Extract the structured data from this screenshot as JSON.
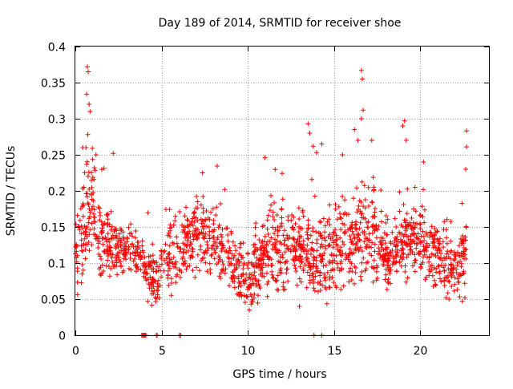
{
  "chart_data": {
    "type": "scatter",
    "title": "Day 189 of 2014, SRMTID for receiver shoe",
    "xlabel": "GPS time / hours",
    "ylabel": "SRMTID / TECUs",
    "xlim": [
      0,
      24
    ],
    "ylim": [
      0,
      0.4
    ],
    "grid": true,
    "marker": "+",
    "colors": {
      "points": "#ff0000",
      "grid": "#a0a0a0",
      "axis": "#000000"
    },
    "x_ticks": [
      {
        "value": 0,
        "label": "0"
      },
      {
        "value": 5,
        "label": "5"
      },
      {
        "value": 10,
        "label": "10"
      },
      {
        "value": 15,
        "label": "15"
      },
      {
        "value": 20,
        "label": "20"
      }
    ],
    "y_ticks": [
      {
        "value": 0,
        "label": "0"
      },
      {
        "value": 0.05,
        "label": "0.05"
      },
      {
        "value": 0.1,
        "label": "0.1"
      },
      {
        "value": 0.15,
        "label": "0.15"
      },
      {
        "value": 0.2,
        "label": "0.2"
      },
      {
        "value": 0.25,
        "label": "0.25"
      },
      {
        "value": 0.3,
        "label": "0.3"
      },
      {
        "value": 0.35,
        "label": "0.35"
      },
      {
        "value": 0.4,
        "label": "0.4"
      }
    ],
    "trend": {
      "name": "SRMTID",
      "x": [
        0.0,
        0.5,
        0.7,
        1.0,
        1.3,
        1.8,
        2.3,
        3.0,
        3.7,
        4.2,
        4.6,
        5.2,
        6.0,
        6.5,
        7.5,
        8.5,
        9.3,
        10.0,
        10.6,
        11.2,
        12.0,
        13.0,
        13.6,
        14.3,
        15.0,
        15.6,
        16.2,
        17.0,
        17.5,
        18.2,
        19.0,
        19.6,
        20.5,
        21.3,
        22.0,
        22.7
      ],
      "y": [
        0.11,
        0.15,
        0.17,
        0.18,
        0.14,
        0.13,
        0.12,
        0.115,
        0.115,
        0.09,
        0.08,
        0.1,
        0.11,
        0.13,
        0.14,
        0.12,
        0.09,
        0.075,
        0.095,
        0.12,
        0.13,
        0.12,
        0.1,
        0.11,
        0.12,
        0.125,
        0.13,
        0.15,
        0.13,
        0.1,
        0.13,
        0.135,
        0.12,
        0.1,
        0.09,
        0.11
      ],
      "spread": [
        0.04,
        0.06,
        0.07,
        0.06,
        0.05,
        0.04,
        0.03,
        0.025,
        0.025,
        0.035,
        0.03,
        0.04,
        0.04,
        0.04,
        0.04,
        0.04,
        0.035,
        0.03,
        0.04,
        0.045,
        0.05,
        0.045,
        0.04,
        0.05,
        0.05,
        0.045,
        0.05,
        0.06,
        0.05,
        0.03,
        0.045,
        0.04,
        0.045,
        0.035,
        0.035,
        0.04
      ]
    },
    "point_count": 1800,
    "highlights": [
      {
        "x": 0.7,
        "y": 0.372
      },
      {
        "x": 0.75,
        "y": 0.365
      },
      {
        "x": 0.65,
        "y": 0.334
      },
      {
        "x": 0.8,
        "y": 0.32
      },
      {
        "x": 0.72,
        "y": 0.278
      },
      {
        "x": 0.85,
        "y": 0.31
      },
      {
        "x": 16.6,
        "y": 0.367
      },
      {
        "x": 16.65,
        "y": 0.355
      },
      {
        "x": 16.7,
        "y": 0.312
      },
      {
        "x": 16.6,
        "y": 0.3
      },
      {
        "x": 16.2,
        "y": 0.285
      },
      {
        "x": 16.4,
        "y": 0.27
      },
      {
        "x": 13.5,
        "y": 0.293
      },
      {
        "x": 13.6,
        "y": 0.28
      },
      {
        "x": 13.8,
        "y": 0.262
      },
      {
        "x": 14.3,
        "y": 0.265
      },
      {
        "x": 14.0,
        "y": 0.253
      },
      {
        "x": 19.1,
        "y": 0.297
      },
      {
        "x": 19.0,
        "y": 0.29
      },
      {
        "x": 19.2,
        "y": 0.27
      },
      {
        "x": 22.7,
        "y": 0.283
      },
      {
        "x": 22.7,
        "y": 0.261
      },
      {
        "x": 22.65,
        "y": 0.23
      },
      {
        "x": 11.0,
        "y": 0.246
      },
      {
        "x": 2.2,
        "y": 0.252
      },
      {
        "x": 1.2,
        "y": 0.25
      },
      {
        "x": 17.2,
        "y": 0.27
      },
      {
        "x": 15.5,
        "y": 0.25
      },
      {
        "x": 20.2,
        "y": 0.24
      },
      {
        "x": 10.1,
        "y": 0.035
      },
      {
        "x": 10.2,
        "y": 0.043
      },
      {
        "x": 13.0,
        "y": 0.04
      },
      {
        "x": 4.2,
        "y": 0.047
      },
      {
        "x": 21.5,
        "y": 0.052
      },
      {
        "x": 22.6,
        "y": 0.052
      }
    ],
    "zero_points": [
      3.85,
      3.9,
      3.95,
      4.0,
      4.05,
      4.1,
      4.7,
      4.75,
      6.05,
      6.1,
      13.85,
      14.3
    ]
  }
}
